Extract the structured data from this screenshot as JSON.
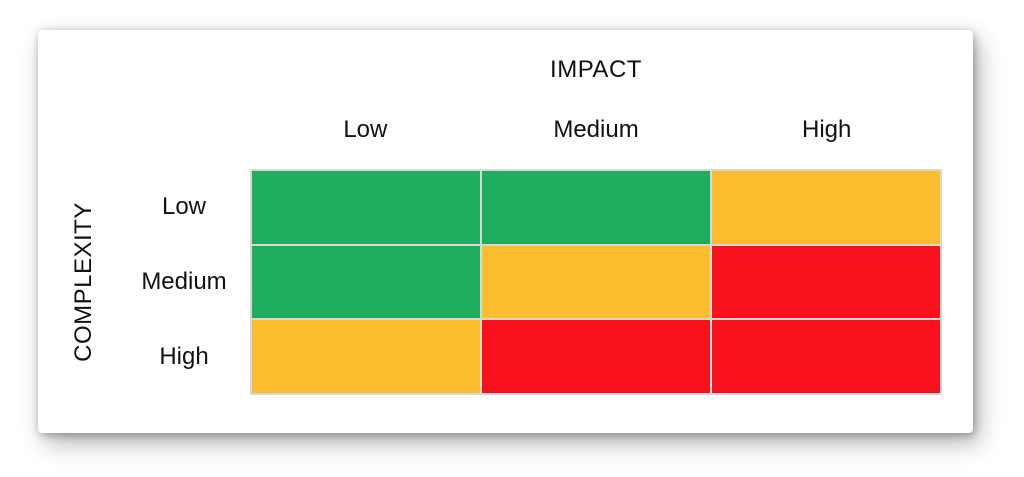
{
  "matrix": {
    "x_axis_title": "IMPACT",
    "y_axis_title": "COMPLEXITY",
    "col_headers": [
      "Low",
      "Medium",
      "High"
    ],
    "row_labels": [
      "Low",
      "Medium",
      "High"
    ],
    "cells": [
      [
        "green",
        "green",
        "amber"
      ],
      [
        "green",
        "amber",
        "red"
      ],
      [
        "amber",
        "red",
        "red"
      ]
    ]
  },
  "colors": {
    "green": "#1FAC5C",
    "amber": "#FBBD2D",
    "red": "#F9111E",
    "gridline": "#d8d8d8",
    "text": "#111111",
    "card_background": "#ffffff"
  },
  "chart_data": {
    "type": "heatmap",
    "title": "IMPACT",
    "xlabel": "IMPACT",
    "ylabel": "COMPLEXITY",
    "x_categories": [
      "Low",
      "Medium",
      "High"
    ],
    "y_categories": [
      "Low",
      "Medium",
      "High"
    ],
    "values": [
      [
        "green",
        "green",
        "amber"
      ],
      [
        "green",
        "amber",
        "red"
      ],
      [
        "amber",
        "red",
        "red"
      ]
    ],
    "legend": "none",
    "grid": "on"
  }
}
